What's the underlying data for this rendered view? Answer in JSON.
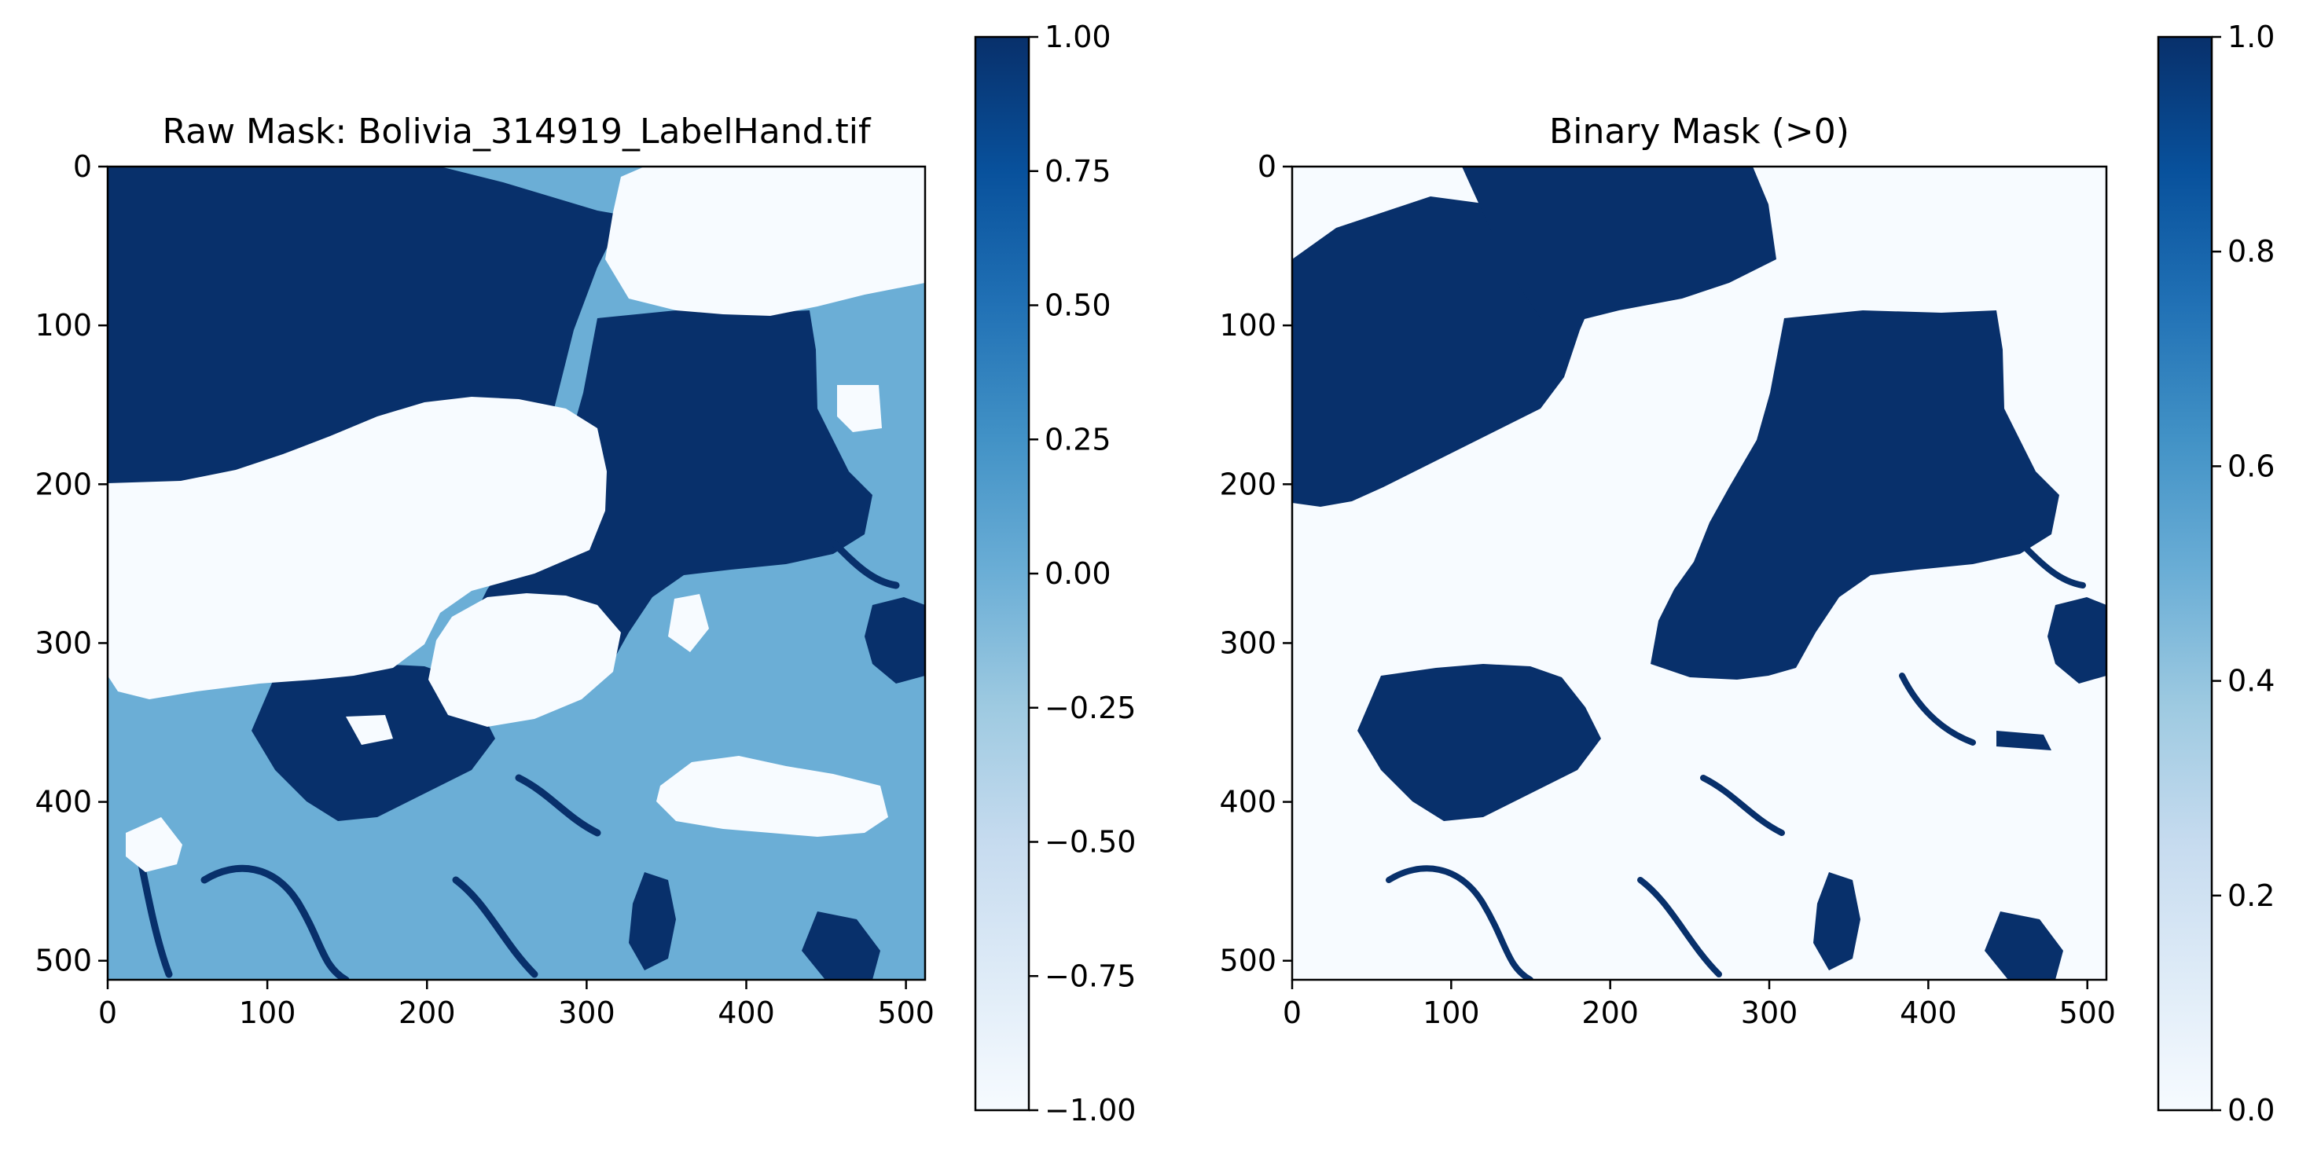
{
  "colors": {
    "cmap": "Blues",
    "dark": "#08306b",
    "mid": "#6baed6",
    "light": "#f7fbff",
    "axis": "#000000"
  },
  "chart_data": [
    {
      "type": "heatmap",
      "title": "Raw Mask: Bolivia_314919_LabelHand.tif",
      "xlabel": "",
      "ylabel": "",
      "xlim": [
        0,
        512
      ],
      "ylim": [
        512,
        0
      ],
      "xticks": [
        0,
        100,
        200,
        300,
        400,
        500
      ],
      "yticks": [
        0,
        100,
        200,
        300,
        400,
        500
      ],
      "grid": false,
      "values_present": [
        -1,
        0,
        1
      ],
      "colorbar": {
        "range": [
          -1.0,
          1.0
        ],
        "ticks": [
          1.0,
          0.75,
          0.5,
          0.25,
          0.0,
          -0.25,
          -0.5,
          -0.75,
          -1.0
        ],
        "tick_labels": [
          "1.00",
          "0.75",
          "0.50",
          "0.25",
          "0.00",
          "−0.25",
          "−0.50",
          "−0.75",
          "−1.00"
        ],
        "placement": "right"
      }
    },
    {
      "type": "heatmap",
      "title": "Binary Mask (>0)",
      "xlabel": "",
      "ylabel": "",
      "xlim": [
        0,
        512
      ],
      "ylim": [
        512,
        0
      ],
      "xticks": [
        0,
        100,
        200,
        300,
        400,
        500
      ],
      "yticks": [
        0,
        100,
        200,
        300,
        400,
        500
      ],
      "grid": false,
      "values_present": [
        0,
        1
      ],
      "colorbar": {
        "range": [
          0.0,
          1.0
        ],
        "ticks": [
          1.0,
          0.8,
          0.6,
          0.4,
          0.2,
          0.0
        ],
        "tick_labels": [
          "1.0",
          "0.8",
          "0.6",
          "0.4",
          "0.2",
          "0.0"
        ],
        "placement": "right"
      }
    }
  ]
}
